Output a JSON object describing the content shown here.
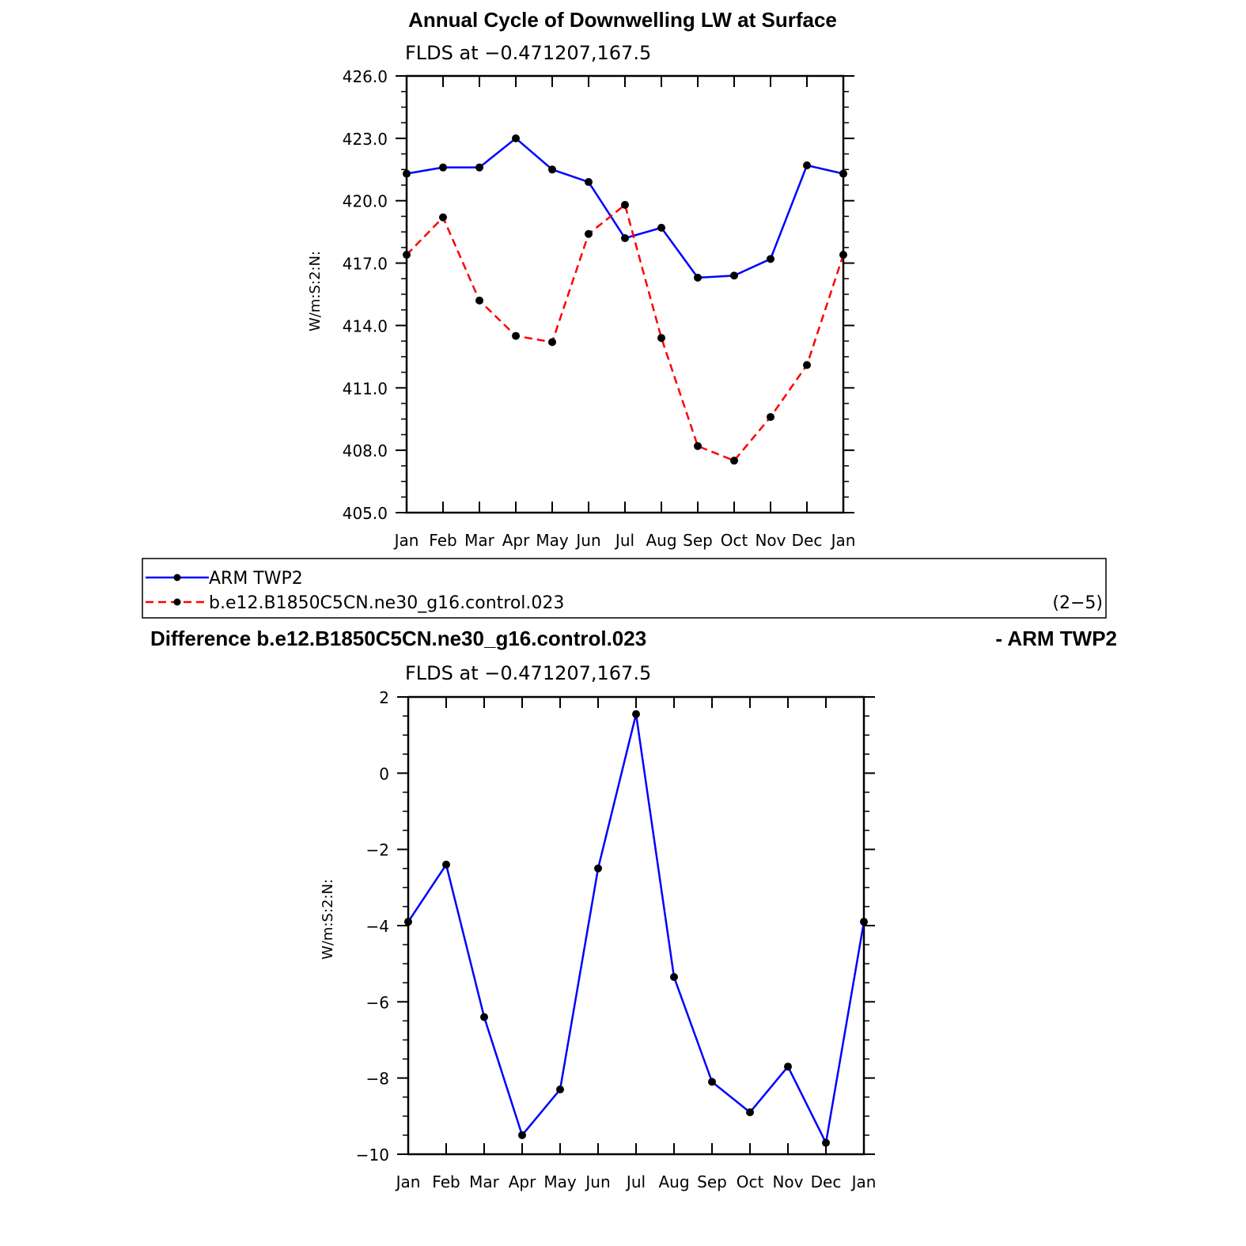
{
  "chart_data": [
    {
      "type": "line",
      "title": "Annual Cycle of Downwelling LW at Surface",
      "subtitle": "FLDS at −0.471207,167.5",
      "ylabel": "W/m:S:2:N:",
      "categories": [
        "Jan",
        "Feb",
        "Mar",
        "Apr",
        "May",
        "Jun",
        "Jul",
        "Aug",
        "Sep",
        "Oct",
        "Nov",
        "Dec",
        "Jan"
      ],
      "ylim": [
        405,
        426
      ],
      "yticks": [
        "405.0",
        "408.0",
        "411.0",
        "414.0",
        "417.0",
        "420.0",
        "423.0",
        "426.0"
      ],
      "series": [
        {
          "name": "ARM TWP2",
          "color": "#0000ff",
          "dashed": false,
          "values": [
            421.3,
            421.6,
            421.6,
            423.0,
            421.5,
            420.9,
            418.2,
            418.7,
            416.3,
            416.4,
            417.2,
            421.7,
            421.3
          ]
        },
        {
          "name": "b.e12.B1850C5CN.ne30_g16.control.023",
          "color": "#ff0000",
          "dashed": true,
          "values": [
            417.4,
            419.2,
            415.2,
            413.5,
            413.2,
            418.4,
            419.8,
            413.4,
            408.2,
            407.5,
            409.6,
            412.1,
            417.4
          ]
        }
      ],
      "legend": {
        "placement": "bottom",
        "items": [
          "ARM TWP2",
          "b.e12.B1850C5CN.ne30_g16.control.023"
        ],
        "note": "(2−5)"
      }
    },
    {
      "type": "line",
      "title": "Difference b.e12.B1850C5CN.ne30_g16.control.023",
      "title_right": "- ARM TWP2",
      "subtitle": "FLDS at −0.471207,167.5",
      "ylabel": "W/m:S:2:N:",
      "categories": [
        "Jan",
        "Feb",
        "Mar",
        "Apr",
        "May",
        "Jun",
        "Jul",
        "Aug",
        "Sep",
        "Oct",
        "Nov",
        "Dec",
        "Jan"
      ],
      "ylim": [
        -10,
        2
      ],
      "yticks": [
        "−10",
        "−8",
        "−6",
        "−4",
        "−2",
        "0",
        "2"
      ],
      "series": [
        {
          "color": "#0000ff",
          "dashed": false,
          "values": [
            -3.9,
            -2.4,
            -6.4,
            -9.5,
            -8.3,
            -2.5,
            1.55,
            -5.35,
            -8.1,
            -8.9,
            -7.7,
            -9.7,
            -3.9
          ]
        }
      ]
    }
  ]
}
